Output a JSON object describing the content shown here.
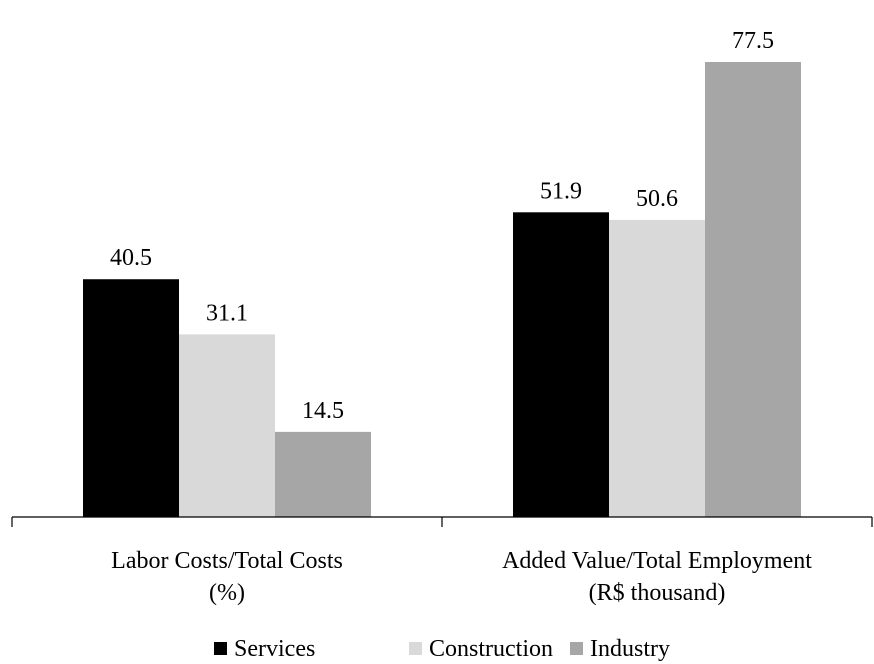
{
  "chart_data": {
    "type": "bar",
    "categories": [
      [
        "Labor Costs/Total Costs",
        "(%)"
      ],
      [
        "Added Value/Total Employment",
        "(R$ thousand)"
      ]
    ],
    "series": [
      {
        "name": "Services",
        "color": "#000000",
        "values": [
          40.5,
          51.9
        ]
      },
      {
        "name": "Construction",
        "color": "#d9d9d9",
        "values": [
          31.1,
          50.6
        ]
      },
      {
        "name": "Industry",
        "color": "#a6a6a6",
        "values": [
          14.5,
          77.5
        ]
      }
    ],
    "legend": "bottom"
  }
}
